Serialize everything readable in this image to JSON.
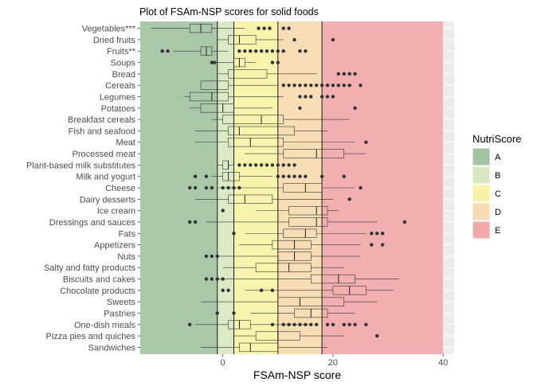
{
  "chart_data": {
    "type": "boxplot",
    "title": "Plot of FSAm-NSP scores for solid foods",
    "xlabel": "FSAm-NSP score",
    "ylabel": "",
    "xlim": [
      -15,
      42
    ],
    "x_ticks": [
      0,
      20,
      40
    ],
    "grid": true,
    "zones": [
      {
        "label": "A",
        "from": -15,
        "to": -1,
        "color": "#a2c4a2"
      },
      {
        "label": "B",
        "from": -1,
        "to": 2,
        "color": "#d9e8c0"
      },
      {
        "label": "C",
        "from": 2,
        "to": 10,
        "color": "#f7f3a6"
      },
      {
        "label": "D",
        "from": 10,
        "to": 18,
        "color": "#f6dbb0"
      },
      {
        "label": "E",
        "from": 18,
        "to": 40,
        "color": "#f2a9a9"
      }
    ],
    "zone_lines": [
      -1,
      2,
      10,
      18
    ],
    "legend": {
      "title": "NutriScore",
      "position": "right"
    },
    "categories": [
      {
        "name": "Vegetables***",
        "stats": [
          -13,
          -6,
          -4,
          -2,
          4
        ],
        "outliers": [
          6.5,
          7.5,
          8.5,
          11,
          12
        ]
      },
      {
        "name": "Dried fruits",
        "stats": [
          -1,
          1,
          3,
          6,
          11
        ],
        "outliers": [
          13,
          20
        ]
      },
      {
        "name": "Fruits**",
        "stats": [
          -9,
          -4,
          -3,
          -2,
          1
        ],
        "outliers": [
          -11,
          -10,
          3,
          4,
          5,
          6,
          7,
          8,
          9,
          10,
          11,
          14,
          15
        ]
      },
      {
        "name": "Soups",
        "stats": [
          -1,
          2,
          3,
          4,
          6
        ],
        "outliers": [
          -2,
          -1.5,
          9,
          10
        ]
      },
      {
        "name": "Bread",
        "stats": [
          -1,
          1,
          2,
          8,
          17
        ],
        "outliers": [
          21,
          22,
          23,
          24
        ]
      },
      {
        "name": "Cereals",
        "stats": [
          -4,
          -4,
          -1,
          1,
          10
        ],
        "outliers": [
          11,
          12,
          13,
          14,
          15,
          16,
          17,
          18,
          19,
          20,
          21,
          22,
          23,
          25
        ]
      },
      {
        "name": "Legumes",
        "stats": [
          -7,
          -6,
          -2,
          1,
          11
        ],
        "outliers": [
          14,
          15,
          16,
          18,
          19,
          20
        ]
      },
      {
        "name": "Potatoes",
        "stats": [
          -6,
          -4,
          0,
          2,
          9
        ],
        "outliers": [
          14,
          24
        ]
      },
      {
        "name": "Breakfast cereals",
        "stats": [
          -2,
          0,
          7,
          11,
          23
        ],
        "outliers": []
      },
      {
        "name": "Fish and seafood",
        "stats": [
          -5,
          1,
          3,
          13,
          19
        ],
        "outliers": []
      },
      {
        "name": "Meat",
        "stats": [
          -5,
          1,
          5,
          11,
          24
        ],
        "outliers": [
          26
        ]
      },
      {
        "name": "Processed meat",
        "stats": [
          4,
          11,
          17,
          22,
          26
        ],
        "outliers": []
      },
      {
        "name": "Plant-based milk substitutes",
        "stats": [
          -1,
          0,
          1,
          1,
          2
        ],
        "outliers": [
          3,
          4,
          5,
          6,
          7,
          8,
          9,
          10,
          11,
          12,
          13
        ]
      },
      {
        "name": "Milk and yogurt",
        "stats": [
          -2,
          0,
          1,
          3,
          9
        ],
        "outliers": [
          -5,
          -3,
          10,
          11,
          12,
          13,
          14,
          15,
          18,
          22
        ]
      },
      {
        "name": "Cheese",
        "stats": [
          -1,
          11,
          15,
          18,
          24
        ],
        "outliers": [
          -6,
          -5,
          -3,
          -2,
          0,
          1,
          2,
          3,
          25
        ]
      },
      {
        "name": "Dairy desserts",
        "stats": [
          -5,
          1,
          4,
          9,
          20
        ],
        "outliers": [
          23
        ]
      },
      {
        "name": "Ice cream",
        "stats": [
          6,
          12,
          17,
          19,
          21
        ],
        "outliers": [
          0
        ]
      },
      {
        "name": "Dressings and sauces",
        "stats": [
          -3,
          12,
          17,
          19,
          28
        ],
        "outliers": [
          -6,
          -5,
          33
        ]
      },
      {
        "name": "Fats",
        "stats": [
          4,
          11,
          15,
          17,
          26
        ],
        "outliers": [
          2,
          27,
          28,
          29
        ]
      },
      {
        "name": "Appetizers",
        "stats": [
          3,
          9,
          13,
          16,
          25
        ],
        "outliers": [
          27,
          29
        ]
      },
      {
        "name": "Nuts",
        "stats": [
          -1,
          10,
          13,
          16,
          25
        ],
        "outliers": [
          -3,
          -2,
          -1
        ]
      },
      {
        "name": "Salty and fatty products",
        "stats": [
          0,
          6,
          12,
          16,
          22
        ],
        "outliers": []
      },
      {
        "name": "Biscuits and cakes",
        "stats": [
          -1,
          16,
          21,
          24,
          32
        ],
        "outliers": [
          -3,
          -2,
          -1,
          0
        ]
      },
      {
        "name": "Chocolate products",
        "stats": [
          4,
          20,
          23,
          26,
          31
        ],
        "outliers": [
          0,
          1,
          7,
          9
        ]
      },
      {
        "name": "Sweets",
        "stats": [
          -4,
          10,
          14,
          22,
          28
        ],
        "outliers": []
      },
      {
        "name": "Pastries",
        "stats": [
          5,
          13,
          16,
          19,
          24
        ],
        "outliers": [
          -1,
          2
        ]
      },
      {
        "name": "One-dish meals",
        "stats": [
          -5,
          1,
          3,
          5,
          16
        ],
        "outliers": [
          -6,
          9,
          11,
          12,
          13,
          14,
          15,
          16,
          17,
          19,
          20,
          22,
          23,
          24,
          26
        ]
      },
      {
        "name": "Pizza pies and quiches",
        "stats": [
          2,
          6,
          10,
          14,
          22
        ],
        "outliers": [
          28
        ]
      },
      {
        "name": "Sandwiches",
        "stats": [
          -4,
          3,
          5,
          10,
          19
        ],
        "outliers": []
      }
    ]
  }
}
